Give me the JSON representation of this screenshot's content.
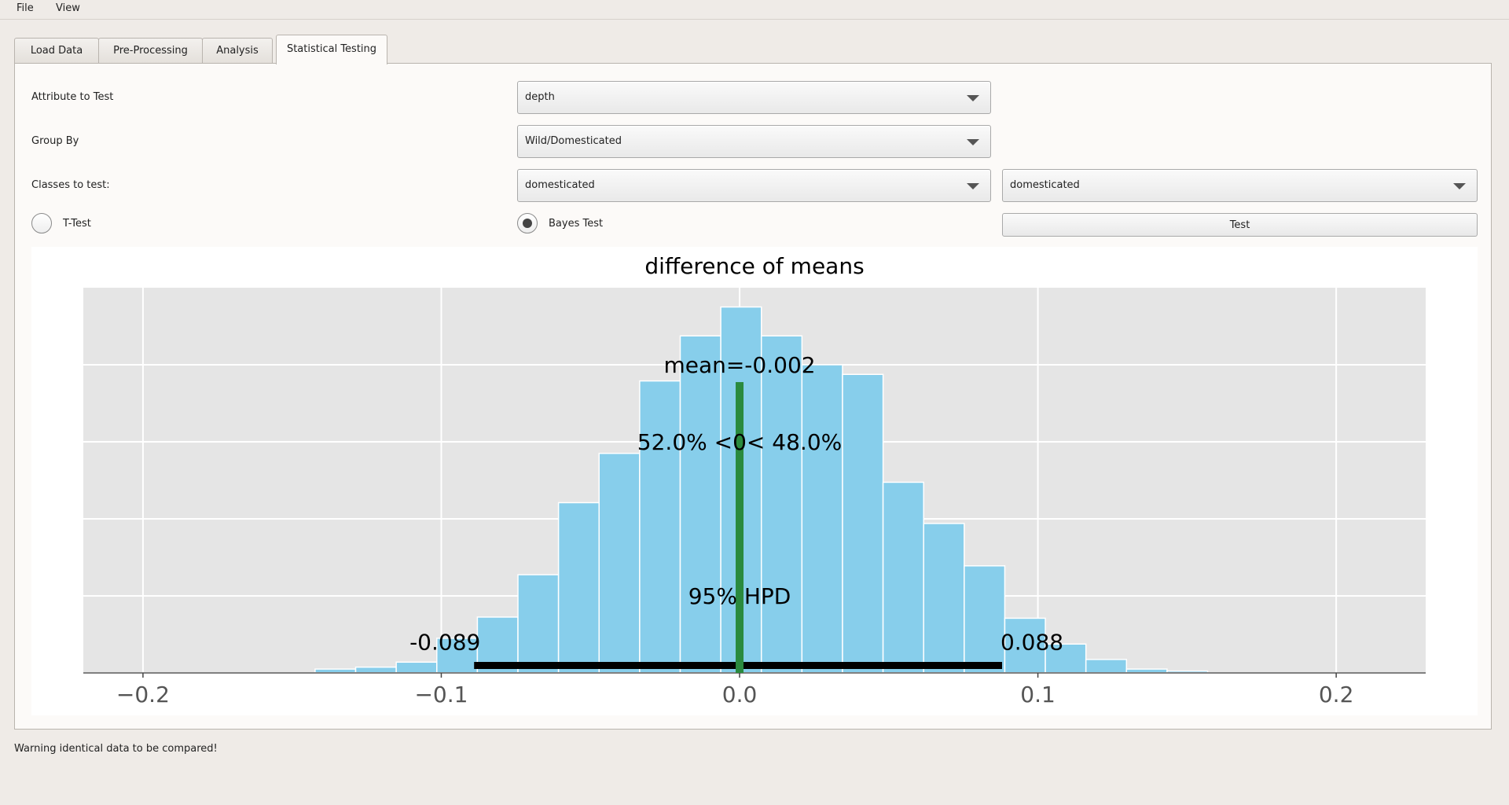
{
  "menu": {
    "file": "File",
    "view": "View"
  },
  "tabs": [
    {
      "label": "Load Data",
      "active": false
    },
    {
      "label": "Pre-Processing",
      "active": false
    },
    {
      "label": "Analysis",
      "active": false
    },
    {
      "label": "Statistical Testing",
      "active": true
    }
  ],
  "form": {
    "attribute_label": "Attribute to Test",
    "attribute_value": "depth",
    "groupby_label": "Group By",
    "groupby_value": "Wild/Domesticated",
    "classes_label": "Classes to test:",
    "class_a_value": "domesticated",
    "class_b_value": "domesticated",
    "ttest_label": "T-Test",
    "bayes_label": "Bayes Test",
    "selected_test": "Bayes Test",
    "test_button": "Test"
  },
  "chart_data": {
    "type": "bar",
    "title": "difference of means",
    "xlim": [
      -0.22,
      0.23
    ],
    "ylim": [
      0,
      1.0
    ],
    "xticks": [
      -0.2,
      -0.1,
      0.0,
      0.1,
      0.2
    ],
    "xtick_labels": [
      "−0.2",
      "−0.1",
      "0.0",
      "0.1",
      "0.2"
    ],
    "bin_width": 0.0136,
    "bins_start": [
      -0.1423,
      -0.1287,
      -0.1151,
      -0.1015,
      -0.0879,
      -0.0743,
      -0.0607,
      -0.0471,
      -0.0335,
      -0.0199,
      -0.0063,
      0.0073,
      0.0209,
      0.0345,
      0.0481,
      0.0617,
      0.0753,
      0.0889,
      0.1025,
      0.1161,
      0.1297,
      0.1433
    ],
    "values": [
      0.01,
      0.015,
      0.028,
      0.09,
      0.145,
      0.255,
      0.442,
      0.57,
      0.758,
      0.875,
      0.95,
      0.875,
      0.8,
      0.775,
      0.495,
      0.388,
      0.278,
      0.142,
      0.075,
      0.035,
      0.01,
      0.005
    ],
    "bar_color": "#87ceeb",
    "grid": true,
    "annotations": {
      "mean_text": "mean=-0.002",
      "ref_text": "52.0% <0< 48.0%",
      "ref_value": 0.0,
      "ref_line_top": 0.755,
      "ref_color": "#2a8a3e",
      "hpd_text": "95% HPD",
      "hpd_low": -0.089,
      "hpd_high": 0.088,
      "hpd_low_text": "-0.089",
      "hpd_high_text": "0.088"
    }
  },
  "status": {
    "message": "Warning identical data to be compared!"
  }
}
